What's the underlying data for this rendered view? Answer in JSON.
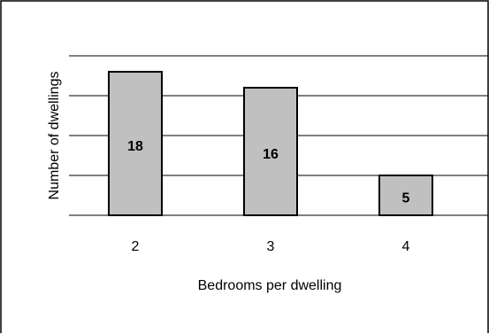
{
  "chart_data": {
    "type": "bar",
    "categories": [
      "2",
      "3",
      "4"
    ],
    "values": [
      18,
      16,
      5
    ],
    "data_labels": [
      "18",
      "16",
      "5"
    ],
    "title": "",
    "xlabel": "Bedrooms per dwelling",
    "ylabel": "Number of dwellings",
    "ylim": [
      0,
      20
    ],
    "gridline_step": 5,
    "grid": true,
    "legend": "none",
    "colors": {
      "bar_fill": "#c0c0c0",
      "bar_stroke": "#000000",
      "grid": "#000000",
      "frame": "#000000"
    }
  }
}
